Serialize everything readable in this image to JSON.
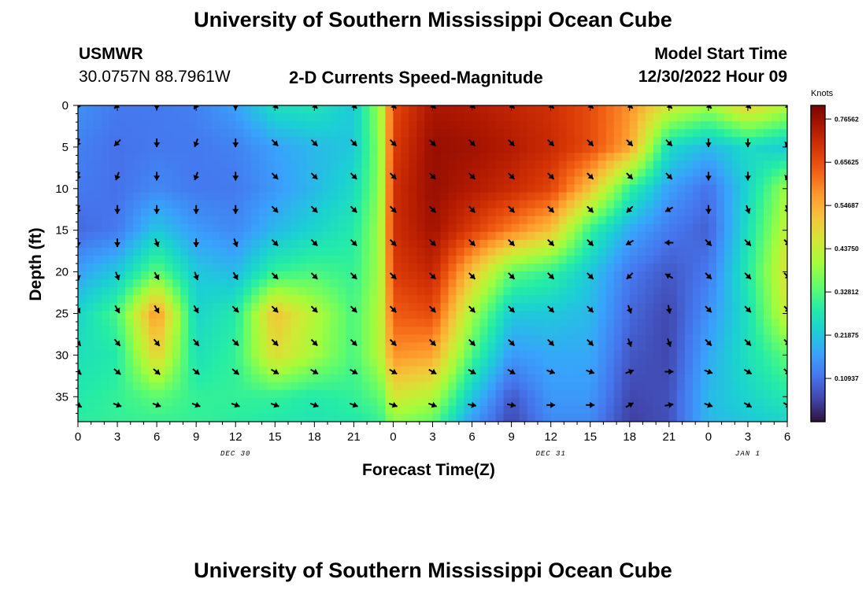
{
  "titles": {
    "main": "University of Southern Mississippi Ocean Cube",
    "second": "University of Southern Mississippi Ocean Cube"
  },
  "station": {
    "name": "USMWR",
    "coords": "30.0757N  88.7961W"
  },
  "chart_heading": "2-D Currents Speed-Magnitude",
  "model": {
    "label": "Model Start Time",
    "value": "12/30/2022 Hour 09"
  },
  "chart_data": {
    "type": "heatmap",
    "title": "2-D Currents Speed-Magnitude",
    "xlabel": "Forecast Time(Z)",
    "ylabel": "Depth (ft)",
    "x_range_hours": [
      0,
      54
    ],
    "y_range_ft": [
      0,
      38
    ],
    "x_tick_labels": [
      "0",
      "3",
      "6",
      "9",
      "12",
      "15",
      "18",
      "21",
      "0",
      "3",
      "6",
      "9",
      "12",
      "15",
      "18",
      "21",
      "0",
      "3",
      "6"
    ],
    "y_tick_labels": [
      "0",
      "5",
      "10",
      "15",
      "20",
      "25",
      "30",
      "35"
    ],
    "y_tick_values": [
      0,
      5,
      10,
      15,
      20,
      25,
      30,
      35
    ],
    "date_labels": [
      {
        "text": "DEC 30",
        "hour": 12
      },
      {
        "text": "DEC 31",
        "hour": 36
      },
      {
        "text": "JAN 1",
        "hour": 51
      }
    ],
    "colorbar": {
      "units": "Knots",
      "min": 0.0,
      "max": 0.8,
      "tick_labels": [
        "0.76562",
        "0.65625",
        "0.54687",
        "0.43750",
        "0.32812",
        "0.21875",
        "0.10937"
      ],
      "tick_values": [
        0.76562,
        0.65625,
        0.54687,
        0.4375,
        0.32812,
        0.21875,
        0.10937
      ],
      "colors": [
        "#30123b",
        "#4145ab",
        "#4675ed",
        "#39a2fc",
        "#1bcfd4",
        "#24eca6",
        "#61fc6c",
        "#a4fc3b",
        "#d1e834",
        "#f3c63a",
        "#fe9b2d",
        "#f36315",
        "#d93806",
        "#b11901",
        "#7a0403"
      ]
    },
    "speed_field": {
      "description": "current speed (knots) by depth row and forecast hour",
      "hours": [
        0,
        3,
        6,
        9,
        12,
        15,
        18,
        21,
        23,
        24,
        27,
        30,
        33,
        36,
        39,
        42,
        45,
        48,
        51,
        54
      ],
      "depths": [
        0,
        5,
        10,
        15,
        20,
        25,
        30,
        35,
        38
      ],
      "values": [
        [
          0.15,
          0.12,
          0.12,
          0.13,
          0.17,
          0.26,
          0.27,
          0.22,
          0.4,
          0.66,
          0.75,
          0.74,
          0.72,
          0.7,
          0.66,
          0.58,
          0.46,
          0.4,
          0.5,
          0.42
        ],
        [
          0.13,
          0.11,
          0.12,
          0.12,
          0.13,
          0.17,
          0.2,
          0.22,
          0.38,
          0.68,
          0.77,
          0.76,
          0.74,
          0.71,
          0.66,
          0.56,
          0.25,
          0.2,
          0.25,
          0.22
        ],
        [
          0.12,
          0.11,
          0.14,
          0.12,
          0.12,
          0.16,
          0.2,
          0.25,
          0.38,
          0.7,
          0.77,
          0.74,
          0.71,
          0.67,
          0.52,
          0.3,
          0.17,
          0.11,
          0.24,
          0.4
        ],
        [
          0.1,
          0.12,
          0.22,
          0.16,
          0.14,
          0.2,
          0.24,
          0.28,
          0.4,
          0.7,
          0.76,
          0.68,
          0.6,
          0.52,
          0.3,
          0.18,
          0.12,
          0.09,
          0.26,
          0.44
        ],
        [
          0.17,
          0.22,
          0.34,
          0.22,
          0.2,
          0.3,
          0.32,
          0.3,
          0.4,
          0.68,
          0.72,
          0.52,
          0.34,
          0.3,
          0.22,
          0.12,
          0.08,
          0.12,
          0.28,
          0.48
        ],
        [
          0.24,
          0.32,
          0.58,
          0.24,
          0.28,
          0.52,
          0.42,
          0.32,
          0.42,
          0.64,
          0.66,
          0.4,
          0.22,
          0.22,
          0.2,
          0.1,
          0.06,
          0.15,
          0.26,
          0.45
        ],
        [
          0.26,
          0.28,
          0.5,
          0.26,
          0.3,
          0.48,
          0.4,
          0.32,
          0.42,
          0.58,
          0.56,
          0.32,
          0.16,
          0.18,
          0.18,
          0.08,
          0.06,
          0.18,
          0.26,
          0.34
        ],
        [
          0.28,
          0.3,
          0.34,
          0.3,
          0.3,
          0.3,
          0.28,
          0.3,
          0.34,
          0.46,
          0.42,
          0.22,
          0.08,
          0.16,
          0.16,
          0.06,
          0.07,
          0.2,
          0.24,
          0.28
        ],
        [
          0.29,
          0.3,
          0.3,
          0.3,
          0.29,
          0.28,
          0.27,
          0.28,
          0.3,
          0.38,
          0.34,
          0.16,
          0.06,
          0.14,
          0.14,
          0.05,
          0.07,
          0.2,
          0.22,
          0.24
        ]
      ]
    },
    "vector_arrows": {
      "description": "current direction vectors; dir in degrees toward (0=N, 90=E, 180=S, 270=W)",
      "hours": [
        0,
        3,
        6,
        9,
        12,
        15,
        18,
        21,
        24,
        27,
        30,
        33,
        36,
        39,
        42,
        45,
        48,
        51,
        54
      ],
      "depths": [
        0,
        4.5,
        8.5,
        12.5,
        16.5,
        20.5,
        24.5,
        28.5,
        32,
        36
      ],
      "dir": [
        [
          200,
          225,
          180,
          210,
          180,
          135,
          135,
          135,
          135,
          135,
          135,
          135,
          135,
          135,
          135,
          135,
          135,
          135,
          135
        ],
        [
          200,
          225,
          180,
          200,
          180,
          135,
          135,
          135,
          135,
          135,
          135,
          135,
          135,
          135,
          135,
          135,
          180,
          180,
          200
        ],
        [
          200,
          200,
          180,
          200,
          180,
          135,
          135,
          135,
          135,
          135,
          135,
          135,
          135,
          135,
          135,
          135,
          180,
          180,
          200
        ],
        [
          200,
          180,
          180,
          180,
          180,
          135,
          135,
          135,
          135,
          135,
          135,
          135,
          135,
          135,
          225,
          240,
          180,
          160,
          160
        ],
        [
          180,
          180,
          160,
          180,
          160,
          135,
          135,
          135,
          135,
          135,
          135,
          135,
          135,
          135,
          240,
          270,
          135,
          135,
          135
        ],
        [
          170,
          160,
          150,
          160,
          150,
          135,
          135,
          135,
          135,
          135,
          135,
          135,
          135,
          135,
          225,
          300,
          135,
          135,
          135
        ],
        [
          150,
          150,
          150,
          150,
          135,
          135,
          135,
          135,
          135,
          135,
          135,
          135,
          135,
          135,
          160,
          170,
          135,
          135,
          135
        ],
        [
          140,
          140,
          140,
          140,
          135,
          135,
          135,
          135,
          135,
          135,
          135,
          135,
          135,
          135,
          160,
          160,
          135,
          135,
          135
        ],
        [
          130,
          130,
          130,
          130,
          130,
          120,
          120,
          120,
          120,
          120,
          120,
          120,
          110,
          110,
          70,
          90,
          110,
          120,
          130
        ],
        [
          120,
          110,
          110,
          110,
          110,
          110,
          110,
          110,
          110,
          110,
          100,
          100,
          90,
          90,
          60,
          80,
          110,
          120,
          120
        ]
      ]
    }
  }
}
